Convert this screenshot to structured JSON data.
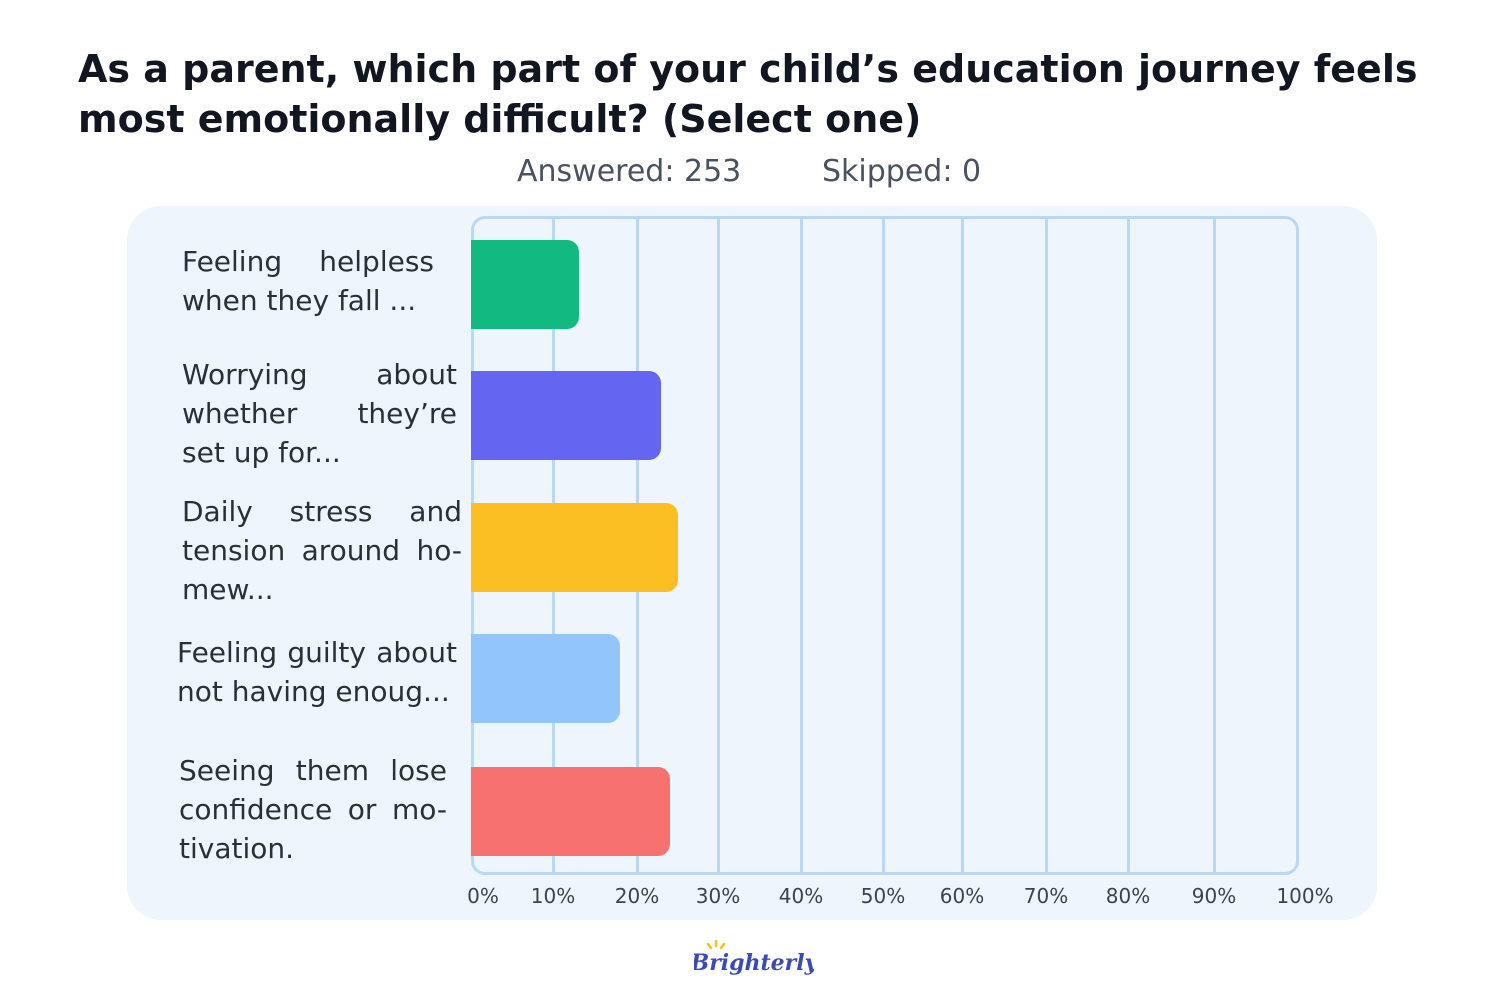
{
  "header": {
    "title": "As a parent, which part of your child’s education journey feels most emotionally difficult? (Select one)",
    "answered": "Answered: 253",
    "skipped": "Skipped: 0"
  },
  "chart_data": {
    "type": "bar",
    "orientation": "horizontal",
    "categories": [
      "Feeling helpless when they fall ...",
      "Worrying about whether they’re set up for...",
      "Daily stress and tension around ho-mew...",
      "Feeling guilty about not having enoug...",
      "Seeing them lose confidence or mo-tivation."
    ],
    "values": [
      13,
      23,
      25,
      18,
      24
    ],
    "colors": [
      "#12b981",
      "#6466f1",
      "#fbbf24",
      "#93c5fd",
      "#f87171"
    ],
    "xlim": [
      0,
      100
    ],
    "ticks": [
      "0%",
      "10%",
      "20%",
      "30%",
      "40%",
      "50%",
      "60%",
      "70%",
      "80%",
      "90%",
      "100%"
    ],
    "grid": true,
    "legend": "none"
  },
  "brand": {
    "logo": "Brighterly",
    "logo_color": "#3b4bb5",
    "spark_color": "#fbbf24"
  }
}
